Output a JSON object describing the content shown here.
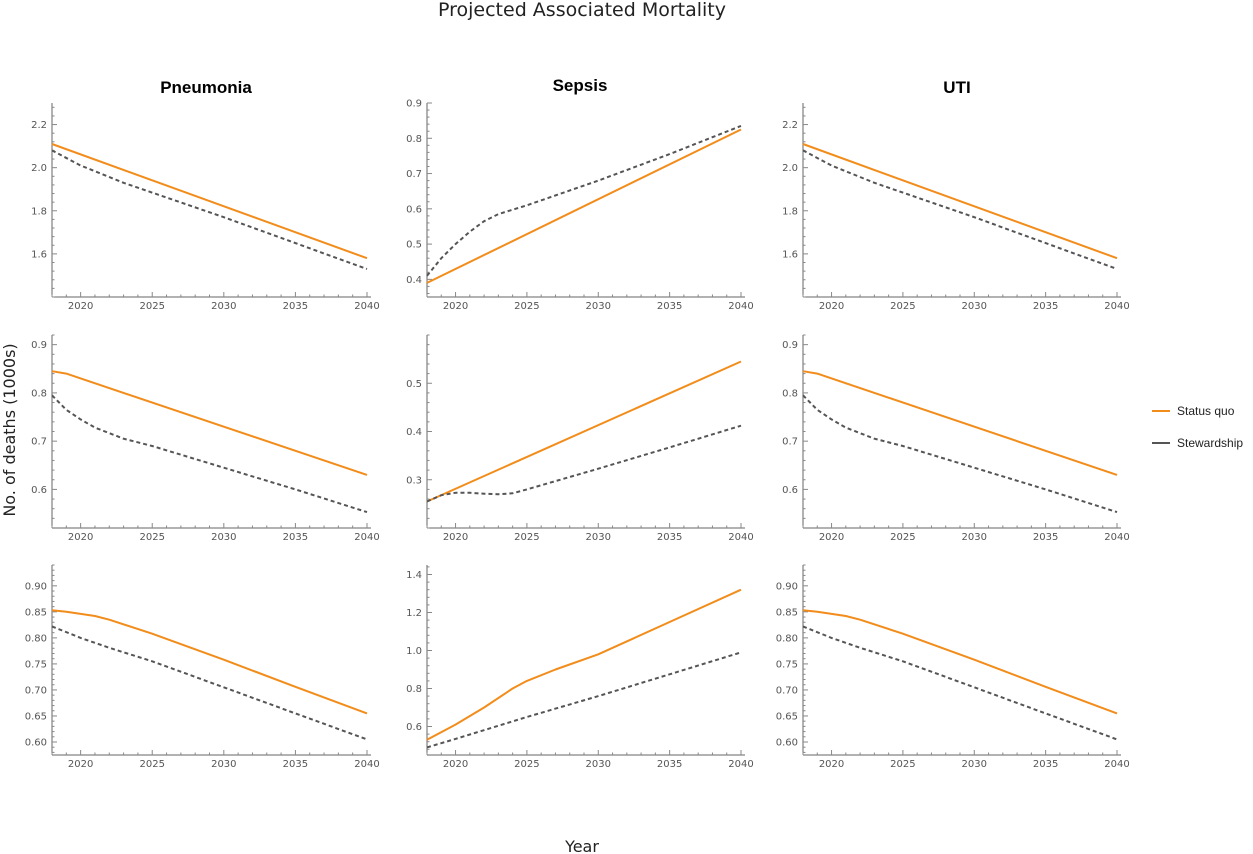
{
  "figure": {
    "title": "Projected Associated Mortality",
    "xlabel": "Year",
    "ylabel": "No. of deaths (1000s)",
    "column_titles": [
      "Pneumonia",
      "Sepsis",
      "UTI"
    ],
    "legend": [
      {
        "label": "Status quo",
        "color": "#f28c1a",
        "style": "solid"
      },
      {
        "label": "Stewardship",
        "color": "#555555",
        "style": "dashed"
      }
    ]
  },
  "chart_data": [
    {
      "type": "line",
      "title": "Pneumonia",
      "xlim": [
        2018,
        2040
      ],
      "ylim": [
        1.4,
        2.3
      ],
      "xticks": [
        2020,
        2025,
        2030,
        2035,
        2040
      ],
      "yticks": [
        1.6,
        1.8,
        2.0,
        2.2
      ],
      "ytick_labels": [
        "1.6",
        "1.8",
        "2.0",
        "2.2"
      ],
      "series": [
        {
          "name": "Status quo",
          "x": [
            2018,
            2040
          ],
          "values": [
            2.11,
            1.58
          ]
        },
        {
          "name": "Stewardship",
          "x": [
            2018,
            2020,
            2023,
            2030,
            2040
          ],
          "values": [
            2.08,
            2.01,
            1.93,
            1.77,
            1.53
          ]
        }
      ]
    },
    {
      "type": "line",
      "title": "Sepsis",
      "xlim": [
        2018,
        2040
      ],
      "ylim": [
        0.35,
        0.9
      ],
      "xticks": [
        2020,
        2025,
        2030,
        2035,
        2040
      ],
      "yticks": [
        0.4,
        0.5,
        0.6,
        0.7,
        0.8,
        0.9
      ],
      "ytick_labels": [
        "0.4",
        "0.5",
        "0.6",
        "0.7",
        "0.8",
        "0.9"
      ],
      "series": [
        {
          "name": "Status quo",
          "x": [
            2018,
            2040
          ],
          "values": [
            0.39,
            0.825
          ]
        },
        {
          "name": "Stewardship",
          "x": [
            2018,
            2019,
            2020,
            2021,
            2022,
            2023,
            2025,
            2030,
            2035,
            2040
          ],
          "values": [
            0.41,
            0.46,
            0.5,
            0.535,
            0.565,
            0.585,
            0.61,
            0.68,
            0.755,
            0.835
          ]
        }
      ]
    },
    {
      "type": "line",
      "title": "UTI",
      "xlim": [
        2018,
        2040
      ],
      "ylim": [
        1.4,
        2.3
      ],
      "xticks": [
        2020,
        2025,
        2030,
        2035,
        2040
      ],
      "yticks": [
        1.6,
        1.8,
        2.0,
        2.2
      ],
      "ytick_labels": [
        "1.6",
        "1.8",
        "2.0",
        "2.2"
      ],
      "series": [
        {
          "name": "Status quo",
          "x": [
            2018,
            2040
          ],
          "values": [
            2.11,
            1.58
          ]
        },
        {
          "name": "Stewardship",
          "x": [
            2018,
            2020,
            2023,
            2030,
            2040
          ],
          "values": [
            2.08,
            2.01,
            1.93,
            1.77,
            1.53
          ]
        }
      ]
    },
    {
      "type": "line",
      "title": "",
      "xlim": [
        2018,
        2040
      ],
      "ylim": [
        0.52,
        0.92
      ],
      "xticks": [
        2020,
        2025,
        2030,
        2035,
        2040
      ],
      "yticks": [
        0.6,
        0.7,
        0.8,
        0.9
      ],
      "ytick_labels": [
        "0.6",
        "0.7",
        "0.8",
        "0.9"
      ],
      "series": [
        {
          "name": "Status quo",
          "x": [
            2018,
            2019,
            2040
          ],
          "values": [
            0.845,
            0.84,
            0.63
          ]
        },
        {
          "name": "Stewardship",
          "x": [
            2018,
            2019,
            2020,
            2021,
            2023,
            2025,
            2030,
            2035,
            2040
          ],
          "values": [
            0.795,
            0.765,
            0.745,
            0.728,
            0.705,
            0.69,
            0.645,
            0.6,
            0.553
          ]
        }
      ]
    },
    {
      "type": "line",
      "title": "",
      "xlim": [
        2018,
        2040
      ],
      "ylim": [
        0.2,
        0.6
      ],
      "xticks": [
        2020,
        2025,
        2030,
        2035,
        2040
      ],
      "yticks": [
        0.3,
        0.4,
        0.5
      ],
      "ytick_labels": [
        "0.3",
        "0.4",
        "0.5"
      ],
      "series": [
        {
          "name": "Status quo",
          "x": [
            2018,
            2040
          ],
          "values": [
            0.255,
            0.545
          ]
        },
        {
          "name": "Stewardship",
          "x": [
            2018,
            2019,
            2020,
            2021,
            2022,
            2023,
            2024,
            2025,
            2030,
            2035,
            2040
          ],
          "values": [
            0.255,
            0.268,
            0.273,
            0.273,
            0.271,
            0.27,
            0.272,
            0.28,
            0.323,
            0.367,
            0.412
          ]
        }
      ]
    },
    {
      "type": "line",
      "title": "",
      "xlim": [
        2018,
        2040
      ],
      "ylim": [
        0.52,
        0.92
      ],
      "xticks": [
        2020,
        2025,
        2030,
        2035,
        2040
      ],
      "yticks": [
        0.6,
        0.7,
        0.8,
        0.9
      ],
      "ytick_labels": [
        "0.6",
        "0.7",
        "0.8",
        "0.9"
      ],
      "series": [
        {
          "name": "Status quo",
          "x": [
            2018,
            2019,
            2040
          ],
          "values": [
            0.845,
            0.84,
            0.63
          ]
        },
        {
          "name": "Stewardship",
          "x": [
            2018,
            2019,
            2020,
            2021,
            2023,
            2025,
            2030,
            2035,
            2040
          ],
          "values": [
            0.795,
            0.765,
            0.745,
            0.728,
            0.705,
            0.69,
            0.645,
            0.6,
            0.553
          ]
        }
      ]
    },
    {
      "type": "line",
      "title": "",
      "xlim": [
        2018,
        2040
      ],
      "ylim": [
        0.575,
        0.94
      ],
      "xticks": [
        2020,
        2025,
        2030,
        2035,
        2040
      ],
      "yticks": [
        0.6,
        0.65,
        0.7,
        0.75,
        0.8,
        0.85,
        0.9
      ],
      "ytick_labels": [
        "0.60",
        "0.65",
        "0.70",
        "0.75",
        "0.80",
        "0.85",
        "0.90"
      ],
      "series": [
        {
          "name": "Status quo",
          "x": [
            2018,
            2019,
            2021,
            2022,
            2025,
            2030,
            2035,
            2040
          ],
          "values": [
            0.853,
            0.85,
            0.842,
            0.835,
            0.808,
            0.758,
            0.706,
            0.655
          ]
        },
        {
          "name": "Stewardship",
          "x": [
            2018,
            2020,
            2022,
            2025,
            2030,
            2035,
            2040
          ],
          "values": [
            0.822,
            0.8,
            0.781,
            0.755,
            0.705,
            0.655,
            0.605
          ]
        }
      ]
    },
    {
      "type": "line",
      "title": "",
      "xlim": [
        2018,
        2040
      ],
      "ylim": [
        0.45,
        1.45
      ],
      "xticks": [
        2020,
        2025,
        2030,
        2035,
        2040
      ],
      "yticks": [
        0.6,
        0.8,
        1.0,
        1.2,
        1.4
      ],
      "ytick_labels": [
        "0.6",
        "0.8",
        "1.0",
        "1.2",
        "1.4"
      ],
      "series": [
        {
          "name": "Status quo",
          "x": [
            2018,
            2020,
            2022,
            2024,
            2025,
            2027,
            2030,
            2035,
            2040
          ],
          "values": [
            0.53,
            0.61,
            0.7,
            0.8,
            0.84,
            0.9,
            0.98,
            1.15,
            1.32
          ]
        },
        {
          "name": "Stewardship",
          "x": [
            2018,
            2020,
            2025,
            2030,
            2035,
            2040
          ],
          "values": [
            0.49,
            0.535,
            0.65,
            0.76,
            0.875,
            0.99
          ]
        }
      ]
    },
    {
      "type": "line",
      "title": "",
      "xlim": [
        2018,
        2040
      ],
      "ylim": [
        0.575,
        0.94
      ],
      "xticks": [
        2020,
        2025,
        2030,
        2035,
        2040
      ],
      "yticks": [
        0.6,
        0.65,
        0.7,
        0.75,
        0.8,
        0.85,
        0.9
      ],
      "ytick_labels": [
        "0.60",
        "0.65",
        "0.70",
        "0.75",
        "0.80",
        "0.85",
        "0.90"
      ],
      "series": [
        {
          "name": "Status quo",
          "x": [
            2018,
            2019,
            2021,
            2022,
            2025,
            2030,
            2035,
            2040
          ],
          "values": [
            0.853,
            0.85,
            0.842,
            0.835,
            0.808,
            0.758,
            0.706,
            0.655
          ]
        },
        {
          "name": "Stewardship",
          "x": [
            2018,
            2020,
            2022,
            2025,
            2030,
            2035,
            2040
          ],
          "values": [
            0.822,
            0.8,
            0.781,
            0.755,
            0.705,
            0.655,
            0.605
          ]
        }
      ]
    }
  ]
}
